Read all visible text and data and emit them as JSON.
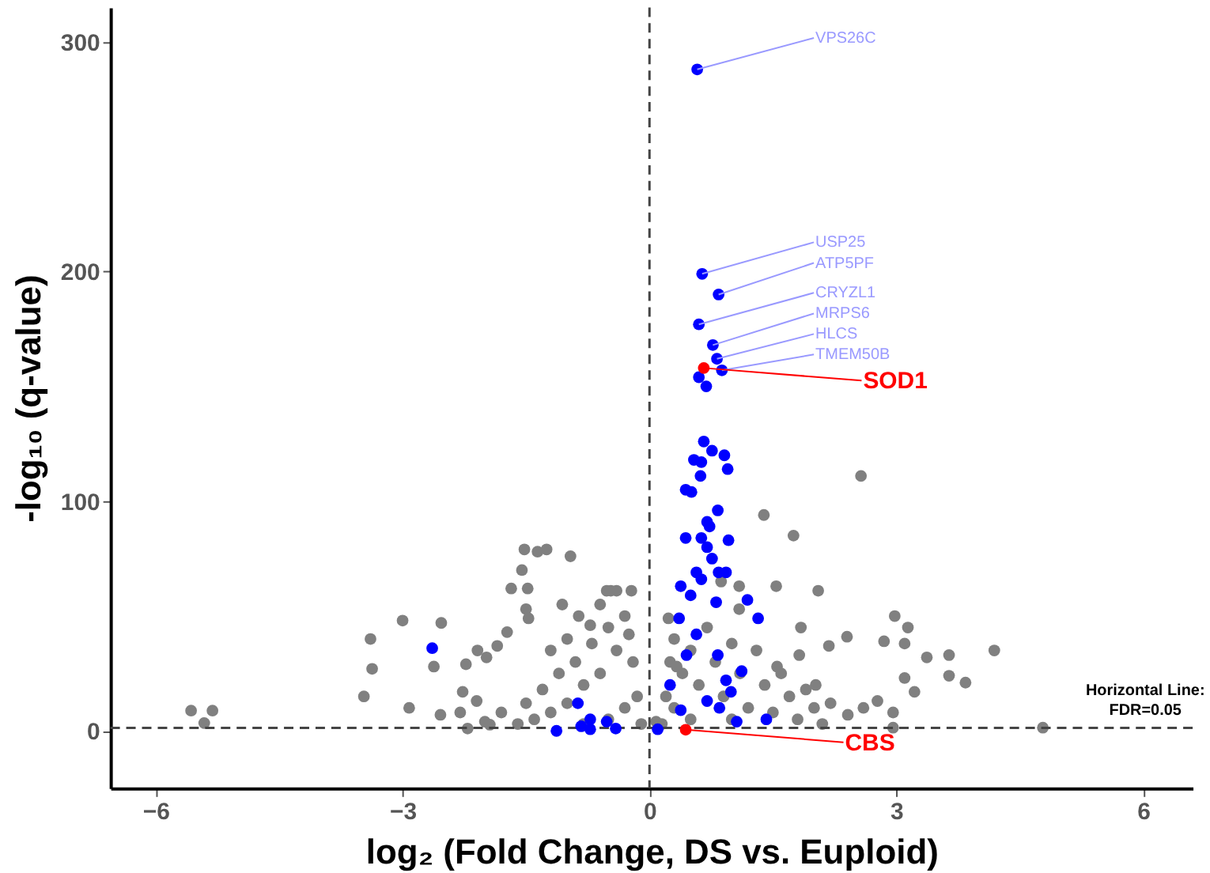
{
  "chart_data": {
    "type": "scatter",
    "xlabel": "log₂ (Fold Change, DS vs. Euploid)",
    "ylabel": "-log₁₀ (q-value)",
    "xlim": [
      -6.55,
      6.6
    ],
    "ylim": [
      -25,
      315
    ],
    "xticks": [
      -6,
      -3,
      0,
      3,
      6
    ],
    "yticks": [
      0,
      100,
      200,
      300
    ],
    "grid": false,
    "marker": "circle",
    "ref_lines": [
      {
        "axis": "y",
        "value": 1.3,
        "color": "#444444",
        "line_style": "dashed"
      },
      {
        "axis": "x",
        "value": 0,
        "color": "#444444",
        "line_style": "dashed"
      }
    ],
    "annotations": [
      {
        "text": "VPS26C",
        "x": 0.58,
        "y": 288
      },
      {
        "text": "USP25",
        "x": 0.64,
        "y": 199
      },
      {
        "text": "ATP5PF",
        "x": 0.84,
        "y": 190
      },
      {
        "text": "CRYZL1",
        "x": 0.6,
        "y": 177
      },
      {
        "text": "MRPS6",
        "x": 0.77,
        "y": 168
      },
      {
        "text": "HLCS",
        "x": 0.82,
        "y": 162
      },
      {
        "text": "TMEM50B",
        "x": 0.88,
        "y": 157
      },
      {
        "text": "SOD1",
        "x": 0.66,
        "y": 158
      },
      {
        "text": "CBS",
        "x": 0.44,
        "y": 0.5
      },
      "Horizontal Line:\nFDR=0.05"
    ],
    "series": [
      {
        "color": "#808080",
        "x": [
          -5.57,
          -5.31,
          -5.41,
          -3.47,
          -3.37,
          -3.39,
          -3.0,
          -2.92,
          -2.53,
          -2.62,
          -2.54,
          -2.23,
          -2.09,
          -1.98,
          -1.85,
          -1.73,
          -1.52,
          -1.36,
          -1.25,
          -0.96,
          -1.55,
          -1.68,
          -1.48,
          -1.5,
          -1.47,
          -0.52,
          -0.4,
          -1.06,
          -0.86,
          -2.3,
          -2.27,
          -2.1,
          -2.21,
          -1.94,
          -0.22,
          -0.47,
          -0.72,
          -0.1,
          -0.15,
          -0.2,
          -0.25,
          -0.3,
          -0.4,
          -0.5,
          -0.6,
          -0.7,
          -0.8,
          -0.9,
          -1.0,
          -1.1,
          -1.2,
          -1.3,
          -1.4,
          -1.5,
          -1.6,
          -1.8,
          -2.0,
          -0.5,
          -0.3,
          -0.8,
          -1.0,
          -1.2,
          -0.6,
          2.57,
          1.39,
          1.75,
          1.54,
          2.05,
          1.09,
          1.84,
          2.98,
          3.14,
          2.4,
          2.18,
          2.85,
          3.1,
          4.19,
          3.64,
          3.37,
          3.64,
          3.84,
          3.1,
          3.22,
          2.96,
          2.96,
          4.78,
          2.77,
          2.6,
          2.41,
          2.02,
          1.82,
          1.55,
          1.09,
          0.87,
          0.23,
          0.33,
          0.08,
          0.15,
          0.2,
          0.25,
          0.3,
          0.4,
          0.5,
          0.6,
          0.7,
          0.8,
          0.9,
          1.0,
          1.1,
          1.2,
          1.3,
          1.4,
          1.5,
          1.6,
          1.7,
          1.8,
          1.9,
          2.0,
          2.1,
          2.2,
          0.5,
          1.0,
          0.3
        ],
        "values": [
          8.8,
          8.8,
          3.4,
          15,
          27,
          40,
          48,
          10,
          47,
          28,
          7,
          29,
          35,
          32,
          37,
          43,
          79,
          78,
          79,
          76,
          70,
          62,
          62,
          53,
          49,
          61,
          61,
          55,
          50,
          8,
          17,
          13,
          1,
          2.7,
          61,
          61,
          46,
          3,
          15,
          30,
          42,
          50,
          35,
          45,
          25,
          38,
          20,
          30,
          12,
          25,
          8,
          18,
          5,
          12,
          3,
          8,
          4,
          5,
          10,
          3,
          40,
          35,
          55,
          111,
          94,
          85,
          63,
          61,
          63,
          45,
          50,
          45,
          41,
          37,
          39,
          38,
          35,
          33,
          32,
          24,
          21,
          23,
          17,
          8,
          1.4,
          1.4,
          13,
          10,
          7,
          20,
          33,
          28,
          53,
          65,
          49,
          28,
          4,
          3,
          15,
          30,
          40,
          25,
          35,
          20,
          45,
          30,
          15,
          38,
          25,
          10,
          35,
          20,
          8,
          25,
          15,
          5,
          18,
          10,
          3,
          12,
          5,
          5,
          10
        ]
      },
      {
        "color": "#0000ff",
        "x": [
          0.58,
          0.64,
          0.84,
          0.6,
          0.77,
          0.82,
          0.88,
          0.6,
          0.69,
          -2.64,
          -0.87,
          -1.13,
          -0.83,
          -0.72,
          -0.52,
          0.66,
          0.76,
          0.54,
          0.95,
          0.63,
          0.91,
          0.62,
          0.44,
          0.51,
          0.83,
          0.7,
          0.73,
          0.44,
          0.63,
          0.96,
          0.7,
          0.76,
          0.84,
          0.93,
          0.57,
          0.38,
          0.63,
          0.5,
          0.81,
          1.19,
          1.32,
          0.36,
          0.57,
          0.83,
          1.12,
          0.25,
          0.93,
          0.99,
          0.85,
          1.06,
          1.42,
          0.45,
          0.38,
          0.7,
          0.1,
          -0.41,
          -0.72
        ],
        "values": [
          288,
          199,
          190,
          177,
          168,
          162,
          157,
          154,
          150,
          36,
          12,
          0,
          2,
          5,
          4,
          126,
          122,
          118,
          114,
          117,
          120,
          111,
          105,
          104,
          96,
          91,
          89,
          84,
          84,
          83,
          80,
          75,
          69,
          69,
          69,
          63,
          66,
          59,
          56,
          57,
          49,
          49,
          42,
          33,
          26,
          20,
          22,
          17,
          10,
          4,
          5,
          33,
          9,
          13,
          0.7,
          1,
          0.7
        ]
      },
      {
        "color": "#ff0000",
        "x": [
          0.66,
          0.44
        ],
        "values": [
          158,
          0.5
        ]
      }
    ]
  }
}
